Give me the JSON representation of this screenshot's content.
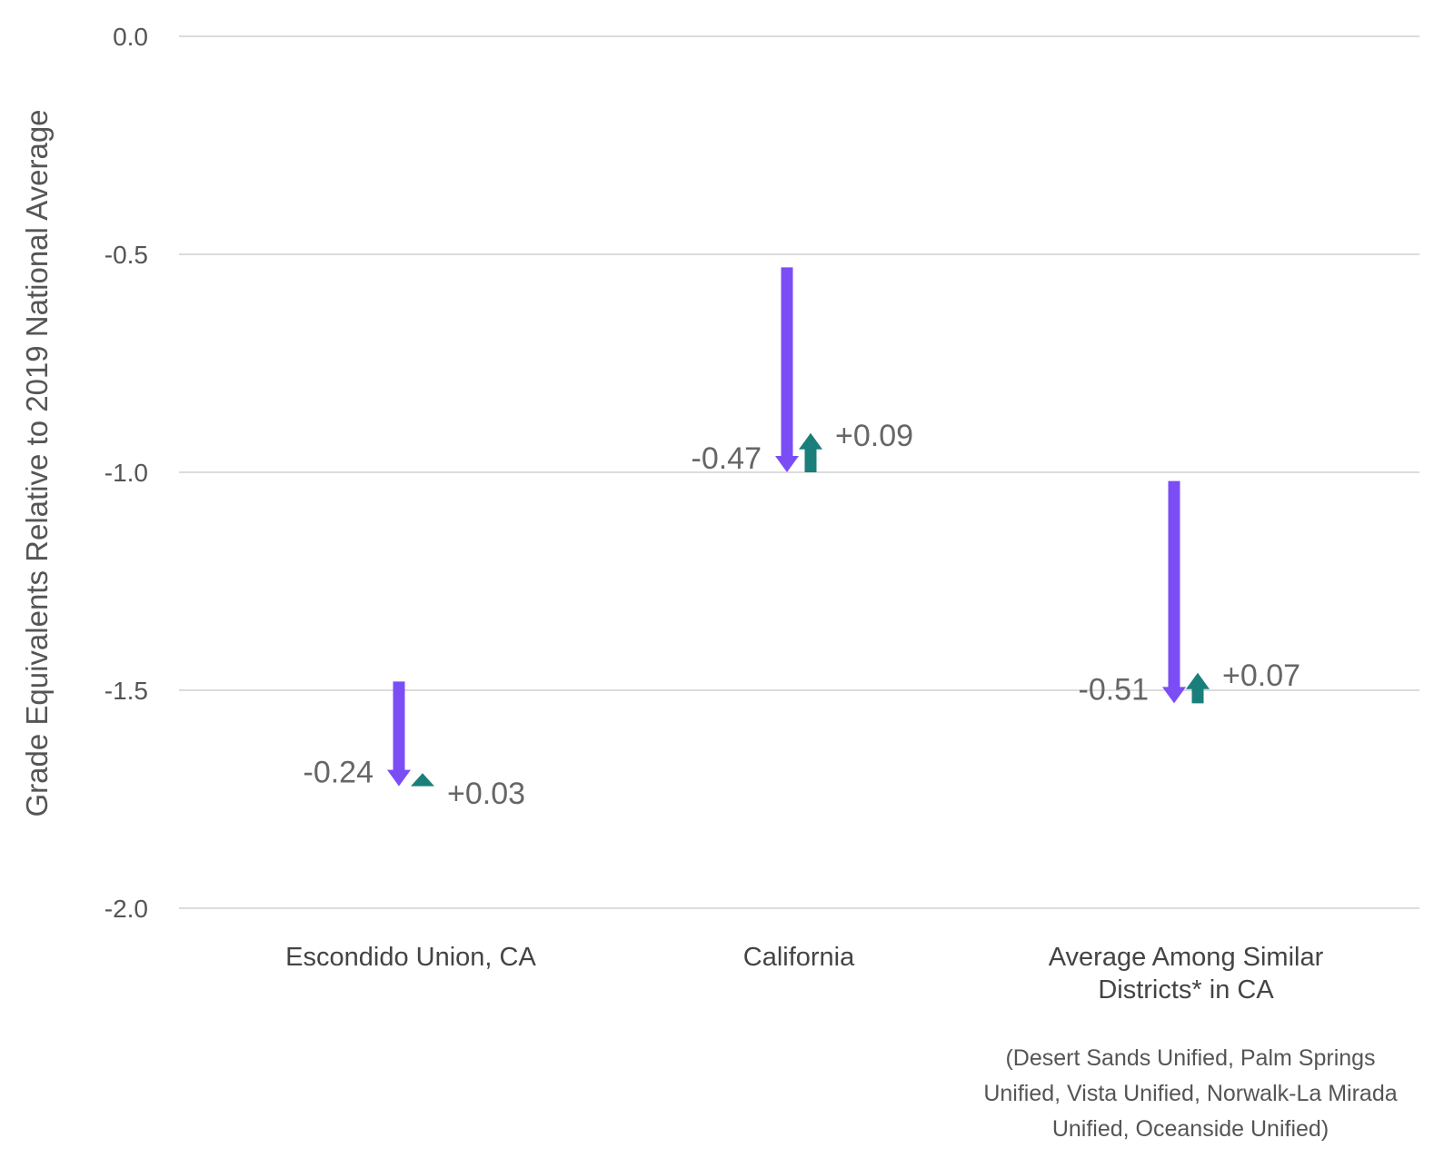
{
  "chart_data": {
    "type": "arrow",
    "ylabel": "Grade Equivalents Relative to 2019 National Average",
    "ylim": [
      -2.0,
      0.0
    ],
    "yticks": [
      0.0,
      -0.5,
      -1.0,
      -1.5,
      -2.0
    ],
    "ytick_labels": [
      "0.0",
      "-0.5",
      "-1.0",
      "-1.5",
      "-2.0"
    ],
    "grid": true,
    "categories": [
      [
        "Escondido Union, CA"
      ],
      [
        "California"
      ],
      [
        "Average Among Similar",
        "Districts* in CA"
      ]
    ],
    "category_note": [
      "(Desert Sands Unified, Palm Springs",
      "Unified, Vista Unified, Norwalk-La Mirada",
      "Unified, Oceanside Unified)"
    ],
    "series": [
      {
        "name": "",
        "color": "#7b4ef5",
        "direction": "down",
        "start": [
          -1.48,
          -0.53,
          -1.02
        ],
        "end": [
          -1.72,
          -1.0,
          -1.53
        ],
        "labels": [
          "-0.24",
          "-0.47",
          "-0.51"
        ]
      },
      {
        "name": "",
        "color": "#1a7f7a",
        "direction": "up",
        "start": [
          -1.72,
          -1.0,
          -1.53
        ],
        "end": [
          -1.69,
          -0.91,
          -1.46
        ],
        "labels": [
          "+0.03",
          "+0.09",
          "+0.07"
        ]
      }
    ]
  }
}
